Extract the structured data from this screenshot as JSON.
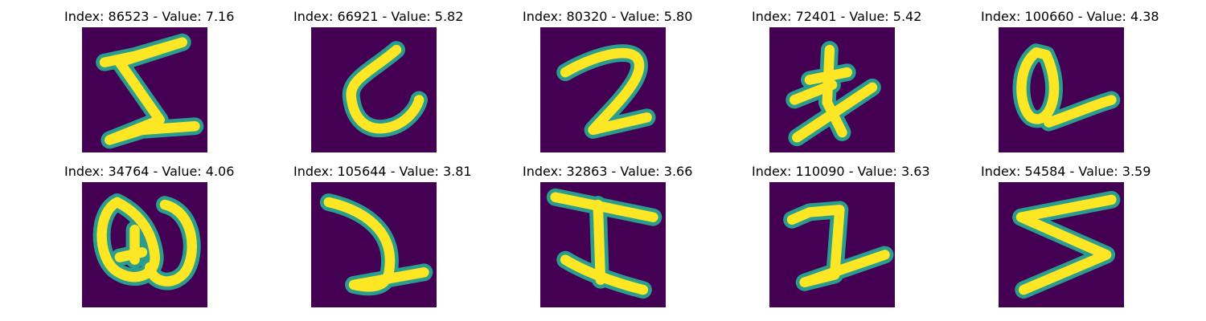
{
  "colors": {
    "background": "#440154",
    "stroke_mid": "#2a9d8f",
    "stroke_core": "#fde725"
  },
  "panels": [
    {
      "title": "Index: 86523 - Value: 7.16",
      "glyph": "sigma-like stroke",
      "index": 86523,
      "value": 7.16
    },
    {
      "title": "Index: 66921 - Value: 5.82",
      "glyph": "curved L stroke",
      "index": 66921,
      "value": 5.82
    },
    {
      "title": "Index: 80320 - Value: 5.80",
      "glyph": "digit two",
      "index": 80320,
      "value": 5.8
    },
    {
      "title": "Index: 72401 - Value: 5.42",
      "glyph": "cross-like stroke",
      "index": 72401,
      "value": 5.42
    },
    {
      "title": "Index: 100660 - Value: 4.38",
      "glyph": "loop with tail",
      "index": 100660,
      "value": 4.38
    },
    {
      "title": "Index: 34764 - Value: 4.06",
      "glyph": "double loop",
      "index": 34764,
      "value": 4.06
    },
    {
      "title": "Index: 105644 - Value: 3.81",
      "glyph": "hook stroke",
      "index": 105644,
      "value": 3.81
    },
    {
      "title": "Index: 32863 - Value: 3.66",
      "glyph": "capital I",
      "index": 32863,
      "value": 3.66
    },
    {
      "title": "Index: 110090 - Value: 3.63",
      "glyph": "two with long base",
      "index": 110090,
      "value": 3.63
    },
    {
      "title": "Index: 54584 - Value: 3.59",
      "glyph": "zigzag S",
      "index": 54584,
      "value": 3.59
    }
  ]
}
